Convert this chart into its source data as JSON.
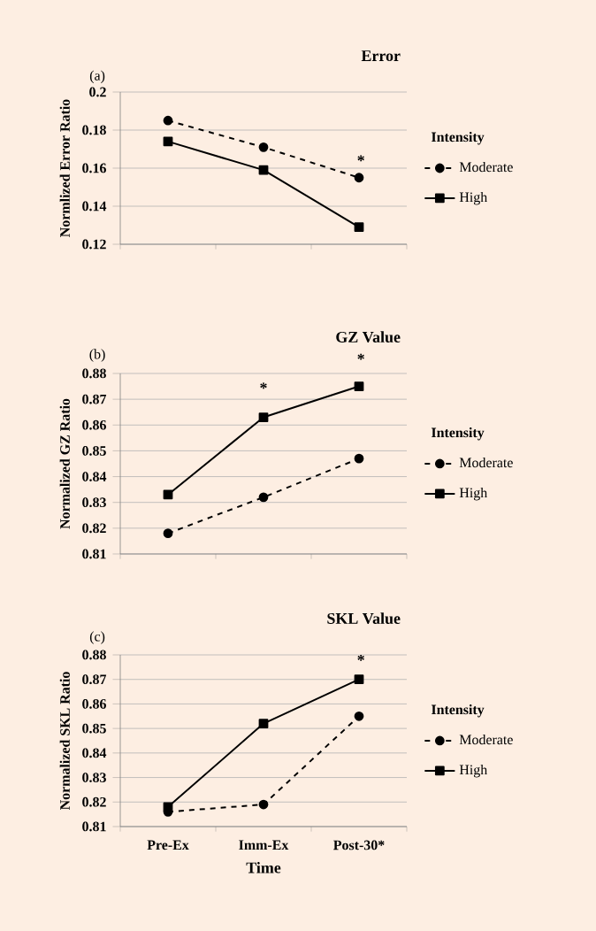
{
  "chart_data": [
    {
      "type": "line",
      "title": "Error",
      "ylabel": "Normlized Error Ratio",
      "categories": [
        null,
        null,
        null
      ],
      "tick_labels": "y",
      "ylim": [
        0.12,
        0.2
      ],
      "yticks": [
        0.12,
        0.14,
        0.16,
        0.18,
        0.2
      ],
      "grid": "y",
      "legend": "right",
      "legend_title": "Intensity",
      "series": [
        {
          "name": "Moderate",
          "color": "#000000",
          "values": [
            0.185,
            0.171,
            0.155
          ],
          "marker": "circle",
          "line_style": "dashed"
        },
        {
          "name": "High",
          "color": "#000000",
          "values": [
            0.174,
            0.159,
            0.129
          ],
          "marker": "square",
          "line_style": "solid"
        }
      ],
      "annotations": [
        "(a)",
        "*"
      ]
    },
    {
      "type": "line",
      "title": "GZ Value",
      "ylabel": "Normalized GZ Ratio",
      "categories": [
        null,
        null,
        null
      ],
      "tick_labels": "y",
      "ylim": [
        0.81,
        0.88
      ],
      "yticks": [
        0.81,
        0.82,
        0.83,
        0.84,
        0.85,
        0.86,
        0.87,
        0.88
      ],
      "grid": "y",
      "legend": "right",
      "legend_title": "Intensity",
      "series": [
        {
          "name": "Moderate",
          "color": "#000000",
          "values": [
            0.818,
            0.832,
            0.847
          ],
          "marker": "circle",
          "line_style": "dashed"
        },
        {
          "name": "High",
          "color": "#000000",
          "values": [
            0.833,
            0.863,
            0.875
          ],
          "marker": "square",
          "line_style": "solid"
        }
      ],
      "annotations": [
        "(b)",
        "*",
        "*"
      ]
    },
    {
      "type": "line",
      "title": "SKL Value",
      "ylabel": "Normalized SKL Ratio",
      "xlabel": "Time",
      "categories": [
        "Pre-Ex",
        "Imm-Ex",
        "Post-30*"
      ],
      "ylim": [
        0.81,
        0.88
      ],
      "yticks": [
        0.81,
        0.82,
        0.83,
        0.84,
        0.85,
        0.86,
        0.87,
        0.88
      ],
      "grid": "y",
      "legend": "right",
      "legend_title": "Intensity",
      "series": [
        {
          "name": "Moderate",
          "color": "#000000",
          "values": [
            0.816,
            0.819,
            0.855
          ],
          "marker": "circle",
          "line_style": "dashed"
        },
        {
          "name": "High",
          "color": "#000000",
          "values": [
            0.818,
            0.852,
            0.87
          ],
          "marker": "square",
          "line_style": "solid"
        }
      ],
      "annotations": [
        "(c)",
        "*"
      ]
    }
  ]
}
